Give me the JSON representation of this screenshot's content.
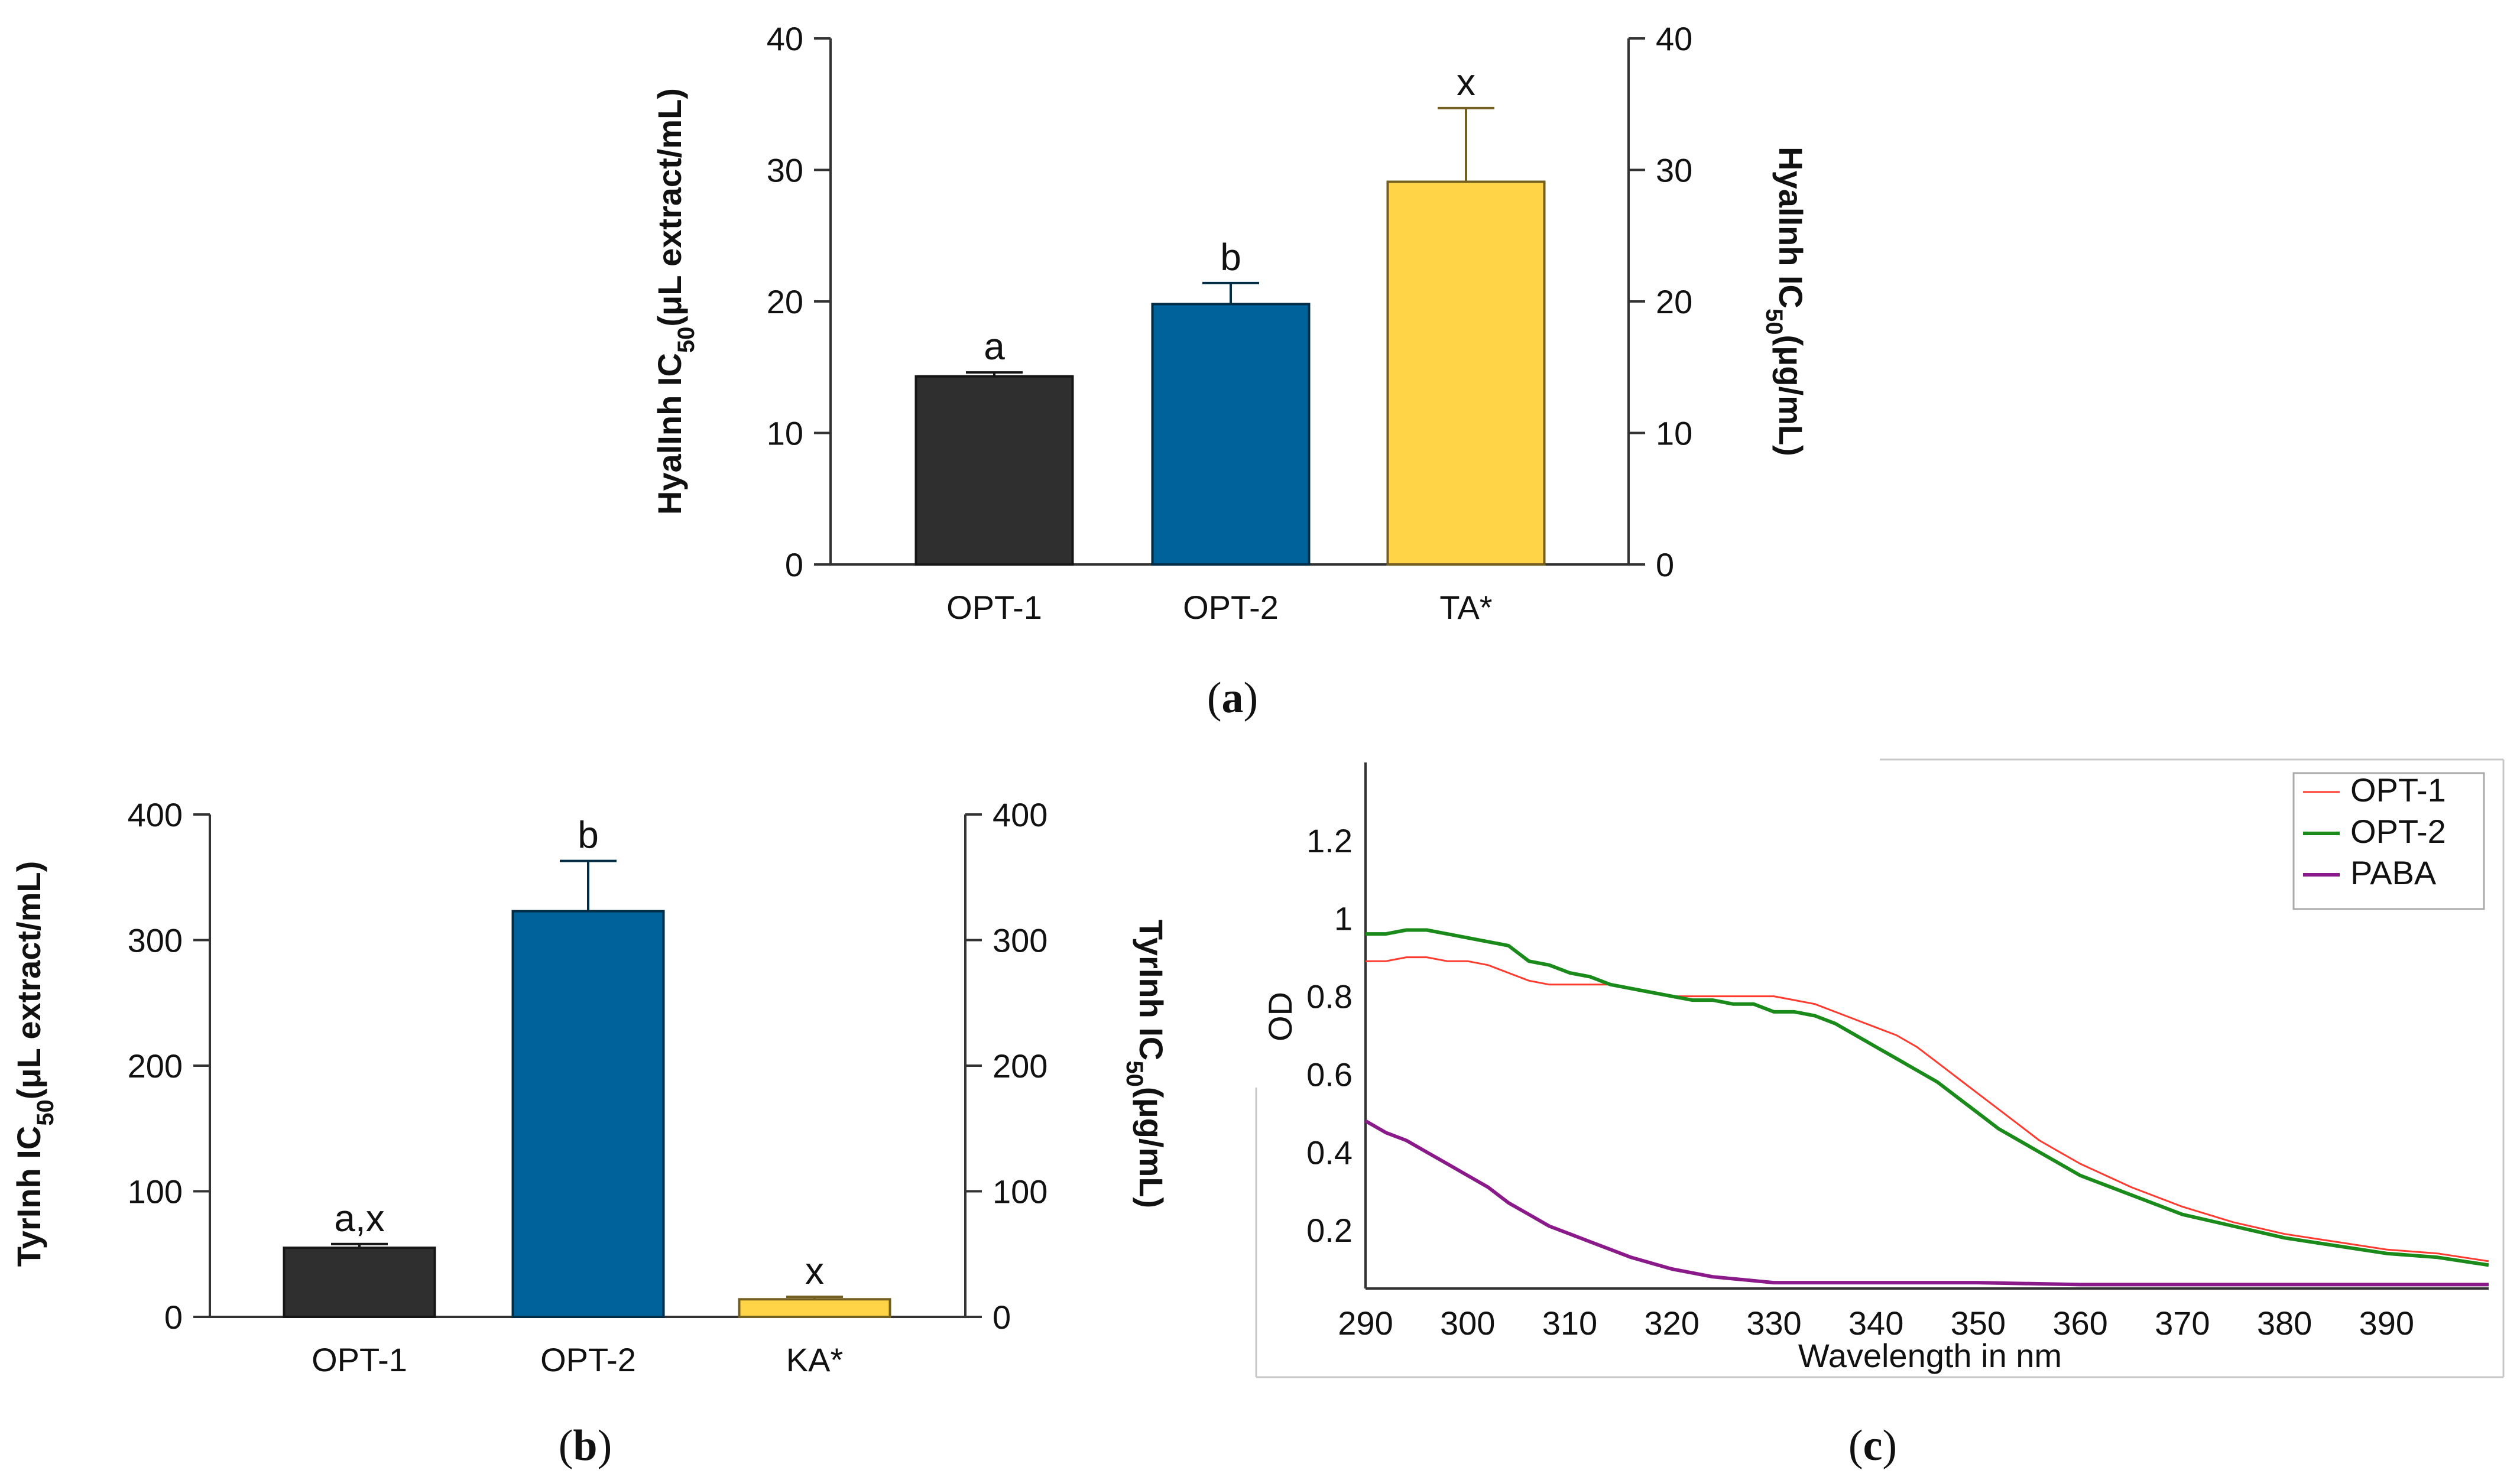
{
  "chart_data": [
    {
      "id": "a",
      "type": "bar",
      "panel_label": "a",
      "categories": [
        "OPT-1",
        "OPT-2",
        "TA*"
      ],
      "values": [
        14.3,
        19.8,
        29.1
      ],
      "errors": [
        0.3,
        1.6,
        5.6
      ],
      "significance": [
        "a",
        "b",
        "x"
      ],
      "colors": [
        "#2f2f2f",
        "#00629a",
        "#ffd447"
      ],
      "ylabel_left": {
        "pre": "HyalInh IC",
        "sub": "50",
        "post": "(μL extract/mL)"
      },
      "ylabel_right": {
        "pre": "HyalInh IC",
        "sub": "50",
        "post": "(μg/mL)"
      },
      "ylim": [
        0,
        40
      ],
      "yticks": [
        "0",
        "10",
        "20",
        "30",
        "40"
      ]
    },
    {
      "id": "b",
      "type": "bar",
      "panel_label": "b",
      "categories": [
        "OPT-1",
        "OPT-2",
        "KA*"
      ],
      "values": [
        55,
        323,
        14
      ],
      "errors": [
        3,
        40,
        2
      ],
      "significance": [
        "a,x",
        "b",
        "x"
      ],
      "colors": [
        "#2f2f2f",
        "#00629a",
        "#ffd447"
      ],
      "ylabel_left": {
        "pre": "TyrInh IC",
        "sub": "50",
        "post": "(μL extract/mL)"
      },
      "ylabel_right": {
        "pre": "TyrInh IC",
        "sub": "50",
        "post": "(μg/mL)"
      },
      "ylim": [
        0,
        400
      ],
      "yticks": [
        "0",
        "100",
        "200",
        "300",
        "400"
      ]
    },
    {
      "id": "c",
      "type": "line",
      "panel_label": "c",
      "xlabel": "Wavelength in nm",
      "ylabel": "OD",
      "xlim": [
        290,
        400
      ],
      "ylim": [
        0.05,
        1.4
      ],
      "xticks": [
        "290",
        "300",
        "310",
        "320",
        "330",
        "340",
        "350",
        "360",
        "370",
        "380",
        "390"
      ],
      "yticks": [
        "0.2",
        "0.4",
        "0.6",
        "0.8",
        "1",
        "1.2"
      ],
      "legend_position": "top-right",
      "series": [
        {
          "name": "OPT-1",
          "color": "#ff3b30",
          "x": [
            290,
            292,
            294,
            296,
            298,
            300,
            302,
            304,
            306,
            308,
            310,
            312,
            314,
            316,
            318,
            320,
            322,
            324,
            326,
            328,
            330,
            332,
            334,
            336,
            338,
            340,
            342,
            344,
            346,
            348,
            350,
            352,
            354,
            356,
            358,
            360,
            365,
            370,
            375,
            380,
            385,
            390,
            395,
            400
          ],
          "y": [
            0.89,
            0.89,
            0.9,
            0.9,
            0.89,
            0.89,
            0.88,
            0.86,
            0.84,
            0.83,
            0.83,
            0.83,
            0.83,
            0.82,
            0.81,
            0.8,
            0.8,
            0.8,
            0.8,
            0.8,
            0.8,
            0.79,
            0.78,
            0.76,
            0.74,
            0.72,
            0.7,
            0.67,
            0.63,
            0.59,
            0.55,
            0.51,
            0.47,
            0.43,
            0.4,
            0.37,
            0.31,
            0.26,
            0.22,
            0.19,
            0.17,
            0.15,
            0.14,
            0.12
          ]
        },
        {
          "name": "OPT-2",
          "color": "#1a8a1a",
          "x": [
            290,
            292,
            294,
            296,
            298,
            300,
            302,
            304,
            306,
            308,
            310,
            312,
            314,
            316,
            318,
            320,
            322,
            324,
            326,
            328,
            330,
            332,
            334,
            336,
            338,
            340,
            342,
            344,
            346,
            348,
            350,
            352,
            354,
            356,
            358,
            360,
            365,
            370,
            375,
            380,
            385,
            390,
            395,
            400
          ],
          "y": [
            0.96,
            0.96,
            0.97,
            0.97,
            0.96,
            0.95,
            0.94,
            0.93,
            0.89,
            0.88,
            0.86,
            0.85,
            0.83,
            0.82,
            0.81,
            0.8,
            0.79,
            0.79,
            0.78,
            0.78,
            0.76,
            0.76,
            0.75,
            0.73,
            0.7,
            0.67,
            0.64,
            0.61,
            0.58,
            0.54,
            0.5,
            0.46,
            0.43,
            0.4,
            0.37,
            0.34,
            0.29,
            0.24,
            0.21,
            0.18,
            0.16,
            0.14,
            0.13,
            0.11
          ]
        },
        {
          "name": "PABA",
          "color": "#8a1a8a",
          "x": [
            290,
            292,
            294,
            296,
            298,
            300,
            302,
            304,
            306,
            308,
            310,
            312,
            314,
            316,
            318,
            320,
            322,
            324,
            326,
            328,
            330,
            335,
            340,
            345,
            350,
            360,
            370,
            380,
            390,
            400
          ],
          "y": [
            0.48,
            0.45,
            0.43,
            0.4,
            0.37,
            0.34,
            0.31,
            0.27,
            0.24,
            0.21,
            0.19,
            0.17,
            0.15,
            0.13,
            0.115,
            0.1,
            0.09,
            0.08,
            0.075,
            0.07,
            0.065,
            0.065,
            0.065,
            0.065,
            0.065,
            0.06,
            0.06,
            0.06,
            0.06,
            0.06
          ]
        }
      ]
    }
  ]
}
